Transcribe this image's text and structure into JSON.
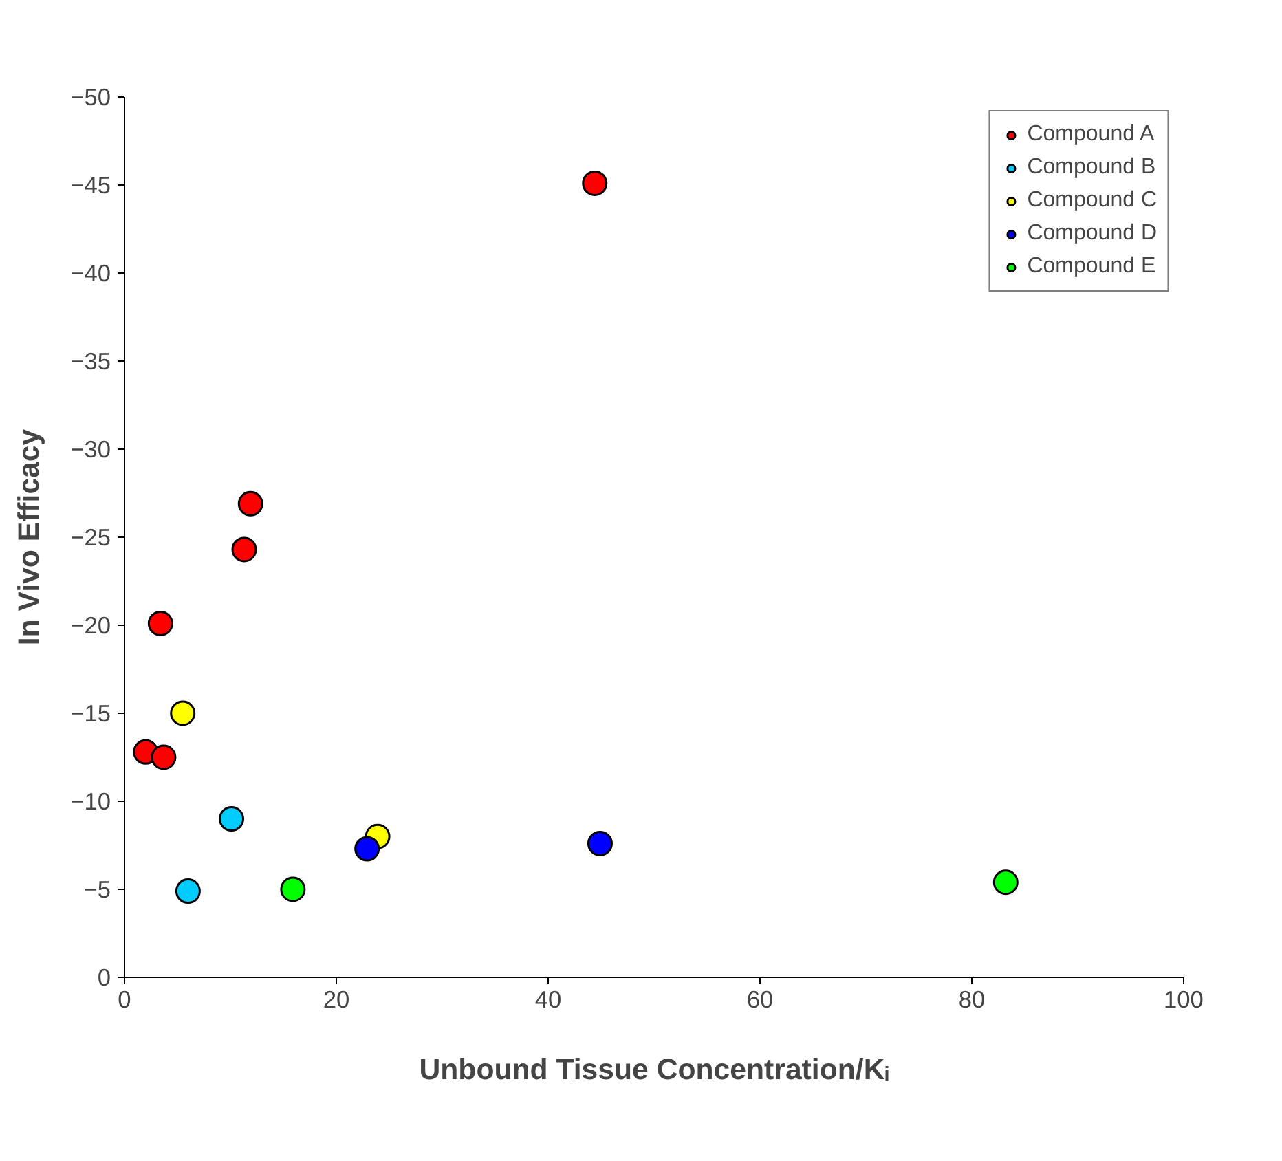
{
  "chart_data": {
    "type": "scatter",
    "xlabel": "Unbound Tissue Concentration/Kᵢ",
    "ylabel": "In Vivo Efficacy",
    "xlim": [
      0,
      100
    ],
    "xticks": [
      0,
      20,
      40,
      60,
      80,
      100
    ],
    "ylim": [
      0,
      -50
    ],
    "yticks": [
      0,
      -5,
      -10,
      -15,
      -20,
      -25,
      -30,
      -35,
      -40,
      -45,
      -50
    ],
    "grid": false,
    "legend": "top right",
    "marker": "circle",
    "series": [
      {
        "name": "Compound A",
        "color": "#ff0000",
        "x": [
          44.4,
          11.9,
          11.3,
          3.4,
          2.0,
          3.7
        ],
        "values": [
          -45.1,
          -26.9,
          -24.3,
          -20.1,
          -12.8,
          -12.5
        ]
      },
      {
        "name": "Compound B",
        "color": "#00ccff",
        "x": [
          10.1,
          6.0
        ],
        "values": [
          -9.0,
          -4.9
        ]
      },
      {
        "name": "Compound C",
        "color": "#ffff00",
        "x": [
          5.5,
          23.9
        ],
        "values": [
          -15.0,
          -8.0
        ]
      },
      {
        "name": "Compound D",
        "color": "#0000ff",
        "x": [
          22.9,
          44.9
        ],
        "values": [
          -7.3,
          -7.6
        ]
      },
      {
        "name": "Compound E",
        "color": "#00ff00",
        "x": [
          15.9,
          83.2
        ],
        "values": [
          -5.0,
          -5.4
        ]
      }
    ]
  }
}
